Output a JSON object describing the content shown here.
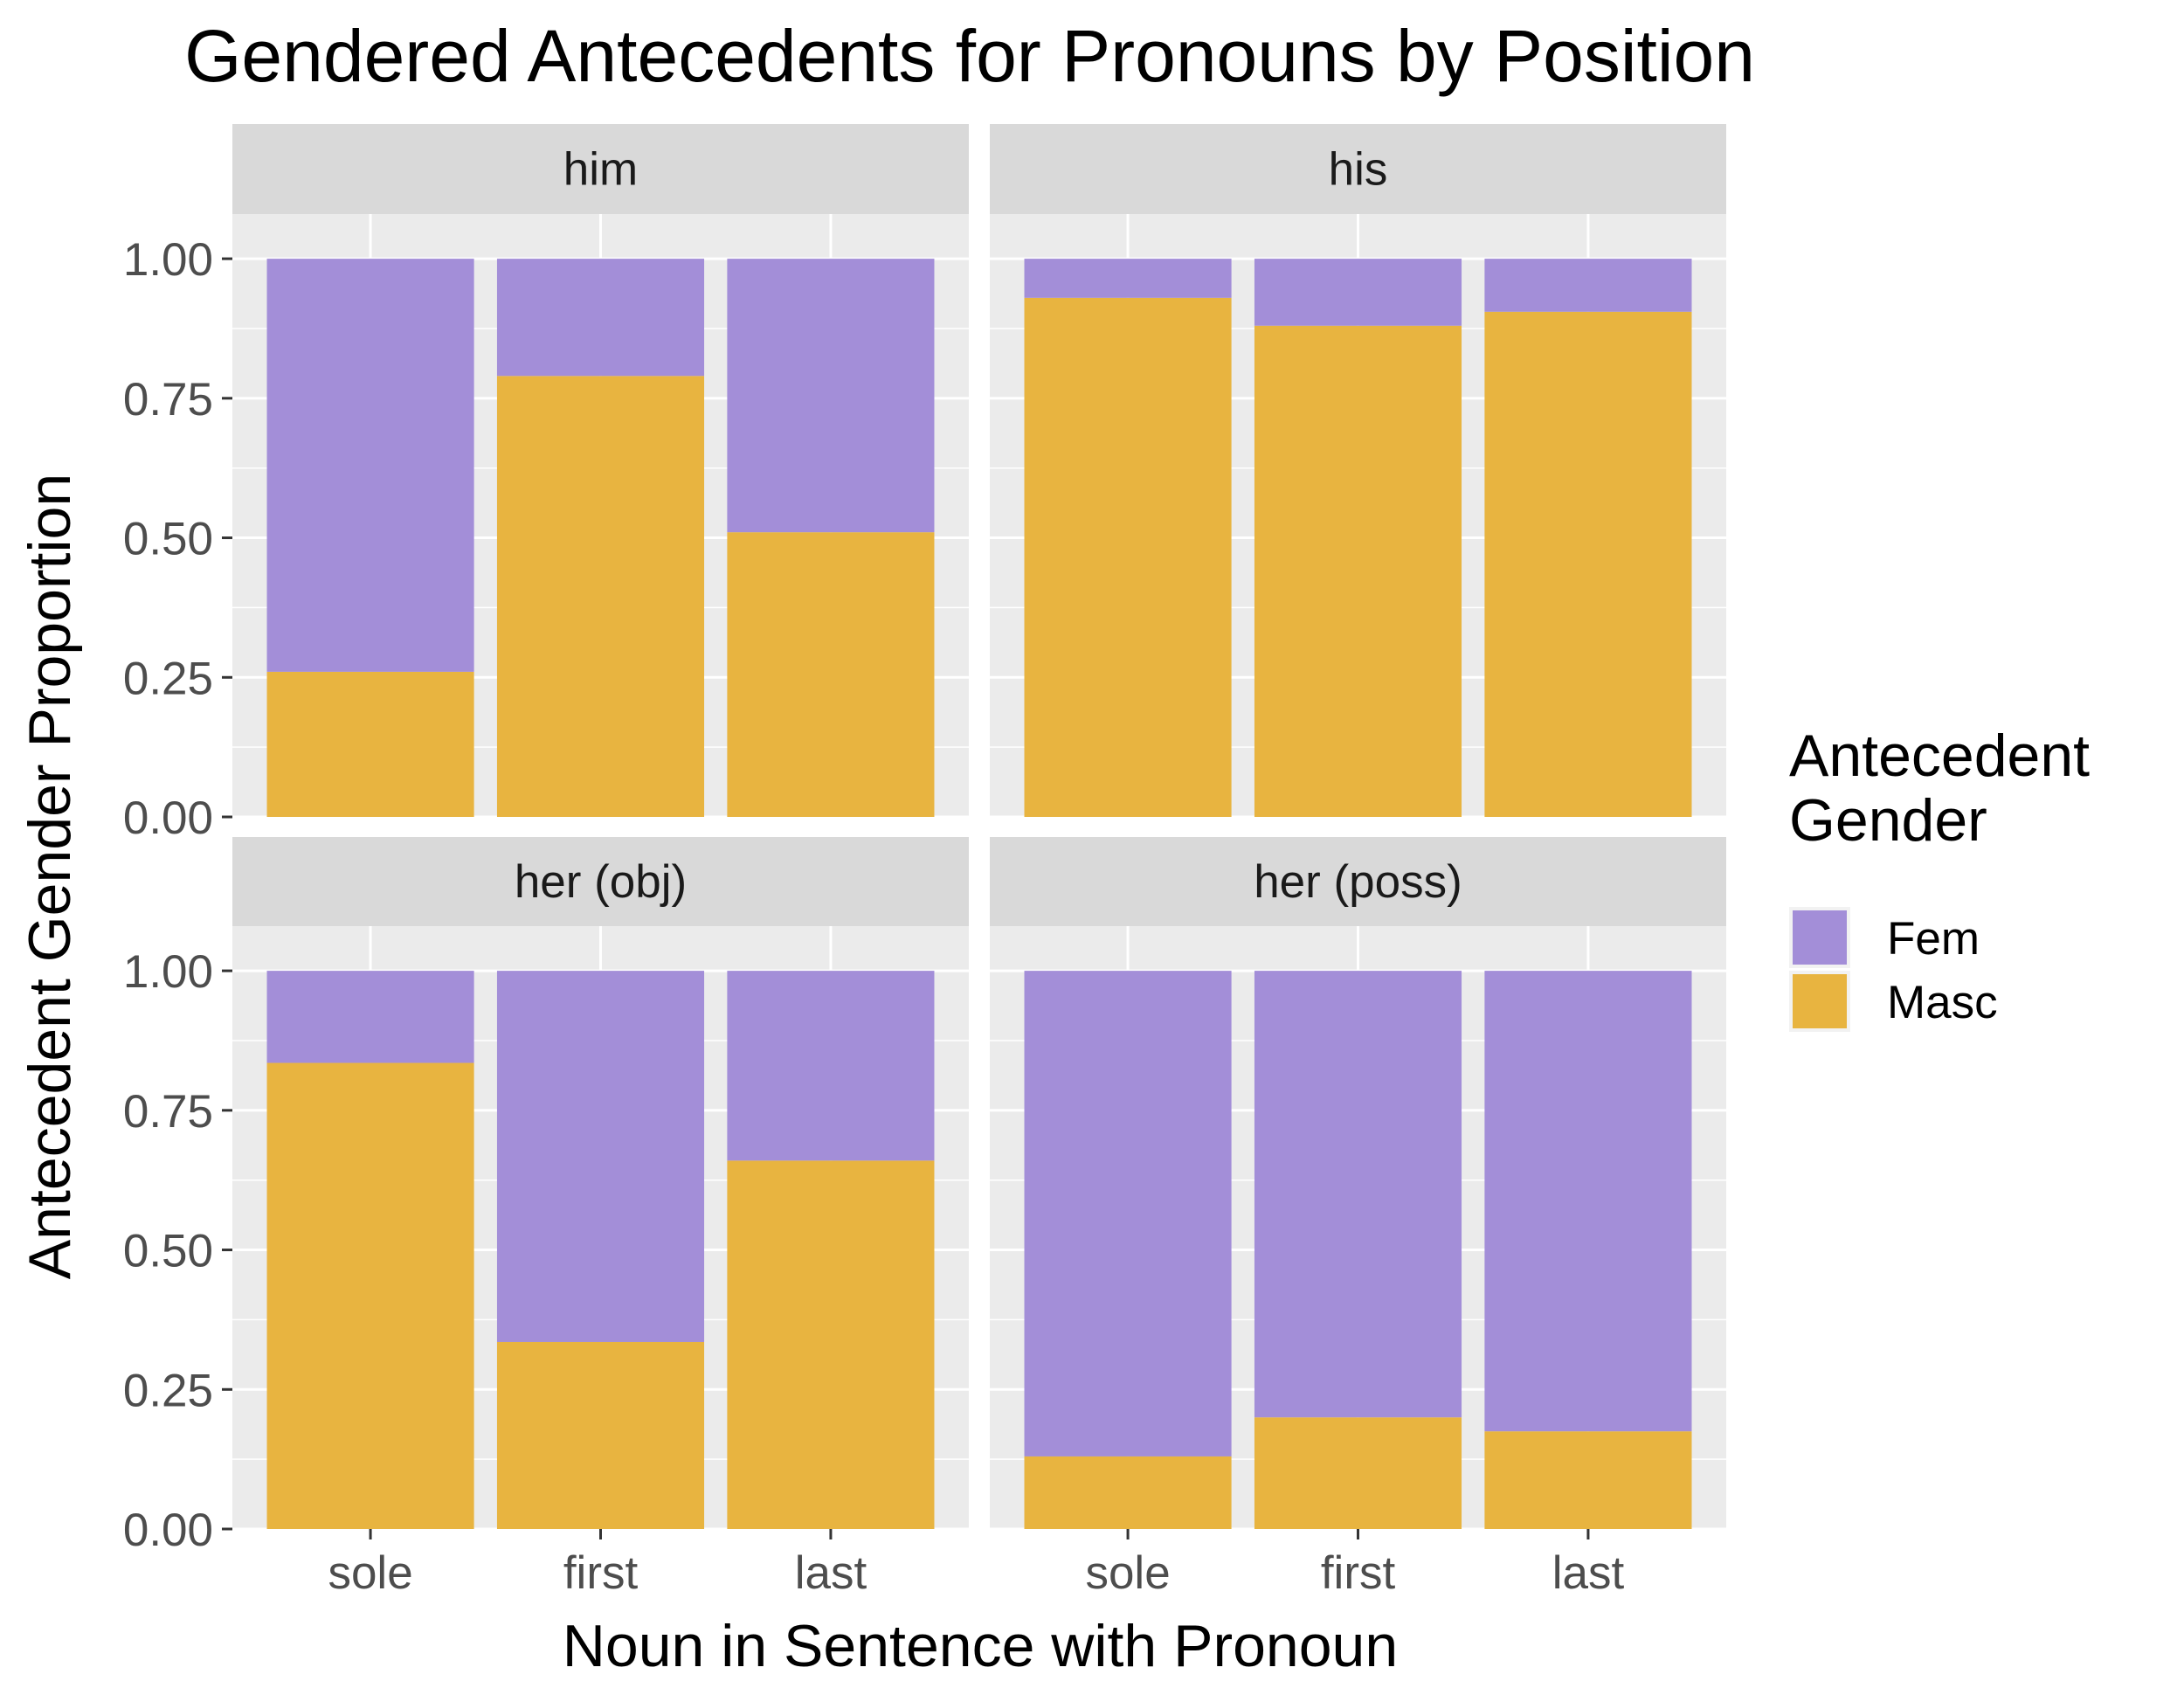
{
  "chart_data": {
    "type": "bar",
    "stacked": true,
    "title": "Gendered Antecedents for Pronouns by Position",
    "xlabel": "Noun in Sentence with Pronoun",
    "ylabel": "Antecedent Gender Proportion",
    "ylim": [
      0,
      1.08
    ],
    "y_ticks": [
      "0.00",
      "0.25",
      "0.50",
      "0.75",
      "1.00"
    ],
    "categories": [
      "sole",
      "first",
      "last"
    ],
    "grid": true,
    "legend": {
      "title_lines": [
        "Antecedent",
        "Gender"
      ],
      "placement": "right",
      "entries": [
        {
          "name": "Fem",
          "color": "#A38ED8"
        },
        {
          "name": "Masc",
          "color": "#E8B440"
        }
      ]
    },
    "panels": [
      {
        "label": "him",
        "series": [
          {
            "name": "Masc",
            "values": [
              0.26,
              0.79,
              0.51
            ]
          },
          {
            "name": "Fem",
            "values": [
              0.74,
              0.21,
              0.49
            ]
          }
        ]
      },
      {
        "label": "his",
        "series": [
          {
            "name": "Masc",
            "values": [
              0.93,
              0.88,
              0.905
            ]
          },
          {
            "name": "Fem",
            "values": [
              0.07,
              0.12,
              0.095
            ]
          }
        ]
      },
      {
        "label": "her (obj)",
        "series": [
          {
            "name": "Masc",
            "values": [
              0.835,
              0.335,
              0.66
            ]
          },
          {
            "name": "Fem",
            "values": [
              0.165,
              0.665,
              0.34
            ]
          }
        ]
      },
      {
        "label": "her (poss)",
        "series": [
          {
            "name": "Masc",
            "values": [
              0.13,
              0.2,
              0.175
            ]
          },
          {
            "name": "Fem",
            "values": [
              0.87,
              0.8,
              0.825
            ]
          }
        ]
      }
    ]
  }
}
